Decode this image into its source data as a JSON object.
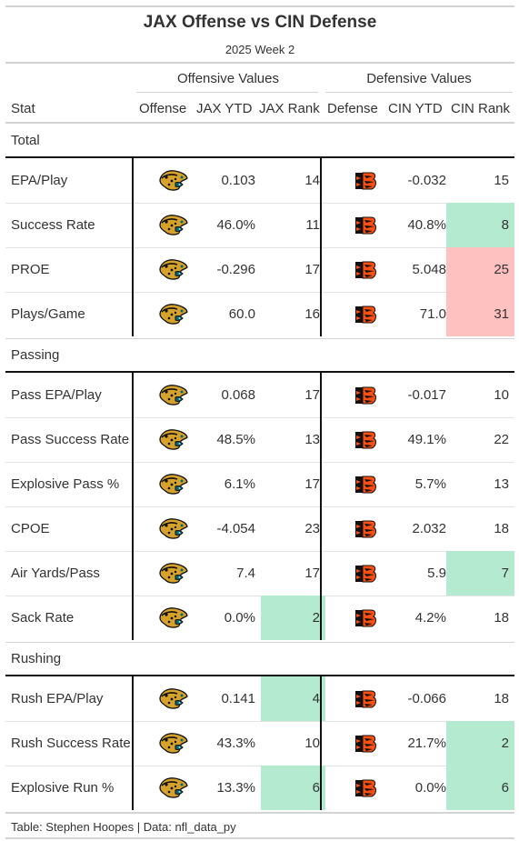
{
  "title": "JAX Offense vs CIN Defense",
  "subtitle": "2025 Week 2",
  "spanners": {
    "offense": "Offensive Values",
    "defense": "Defensive Values"
  },
  "columns": [
    "Stat",
    "Offense",
    "JAX YTD",
    "JAX Rank",
    "Defense",
    "CIN YTD",
    "CIN Rank"
  ],
  "colors": {
    "green_highlight": "#b3ead0",
    "red_highlight": "#ffc0c0",
    "bengals_orange": "#fb4f14",
    "jaguars_teal": "#006778",
    "jaguars_gold": "#d7a22a"
  },
  "groups": [
    {
      "label": "Total",
      "rows": [
        {
          "stat": "EPA/Play",
          "jax_ytd": "0.103",
          "jax_rank": "14",
          "jax_hl": "",
          "cin_ytd": "-0.032",
          "cin_rank": "15",
          "cin_hl": ""
        },
        {
          "stat": "Success Rate",
          "jax_ytd": "46.0%",
          "jax_rank": "11",
          "jax_hl": "",
          "cin_ytd": "40.8%",
          "cin_rank": "8",
          "cin_hl": "green"
        },
        {
          "stat": "PROE",
          "jax_ytd": "-0.296",
          "jax_rank": "17",
          "jax_hl": "",
          "cin_ytd": "5.048",
          "cin_rank": "25",
          "cin_hl": "red"
        },
        {
          "stat": "Plays/Game",
          "jax_ytd": "60.0",
          "jax_rank": "16",
          "jax_hl": "",
          "cin_ytd": "71.0",
          "cin_rank": "31",
          "cin_hl": "red"
        }
      ]
    },
    {
      "label": "Passing",
      "rows": [
        {
          "stat": "Pass EPA/Play",
          "jax_ytd": "0.068",
          "jax_rank": "17",
          "jax_hl": "",
          "cin_ytd": "-0.017",
          "cin_rank": "10",
          "cin_hl": ""
        },
        {
          "stat": "Pass Success Rate",
          "jax_ytd": "48.5%",
          "jax_rank": "13",
          "jax_hl": "",
          "cin_ytd": "49.1%",
          "cin_rank": "22",
          "cin_hl": ""
        },
        {
          "stat": "Explosive Pass %",
          "jax_ytd": "6.1%",
          "jax_rank": "17",
          "jax_hl": "",
          "cin_ytd": "5.7%",
          "cin_rank": "13",
          "cin_hl": ""
        },
        {
          "stat": "CPOE",
          "jax_ytd": "-4.054",
          "jax_rank": "23",
          "jax_hl": "",
          "cin_ytd": "2.032",
          "cin_rank": "18",
          "cin_hl": ""
        },
        {
          "stat": "Air Yards/Pass",
          "jax_ytd": "7.4",
          "jax_rank": "17",
          "jax_hl": "",
          "cin_ytd": "5.9",
          "cin_rank": "7",
          "cin_hl": "green"
        },
        {
          "stat": "Sack Rate",
          "jax_ytd": "0.0%",
          "jax_rank": "2",
          "jax_hl": "green",
          "cin_ytd": "4.2%",
          "cin_rank": "18",
          "cin_hl": ""
        }
      ]
    },
    {
      "label": "Rushing",
      "rows": [
        {
          "stat": "Rush EPA/Play",
          "jax_ytd": "0.141",
          "jax_rank": "4",
          "jax_hl": "green",
          "cin_ytd": "-0.066",
          "cin_rank": "18",
          "cin_hl": ""
        },
        {
          "stat": "Rush Success Rate",
          "jax_ytd": "43.3%",
          "jax_rank": "10",
          "jax_hl": "",
          "cin_ytd": "21.7%",
          "cin_rank": "2",
          "cin_hl": "green"
        },
        {
          "stat": "Explosive Run %",
          "jax_ytd": "13.3%",
          "jax_rank": "6",
          "jax_hl": "green",
          "cin_ytd": "0.0%",
          "cin_rank": "6",
          "cin_hl": "green"
        }
      ]
    }
  ],
  "icons": {
    "offense": "jaguars-logo-icon",
    "defense": "bengals-logo-icon"
  },
  "footer": "Table: Stephen Hoopes | Data: nfl_data_py"
}
